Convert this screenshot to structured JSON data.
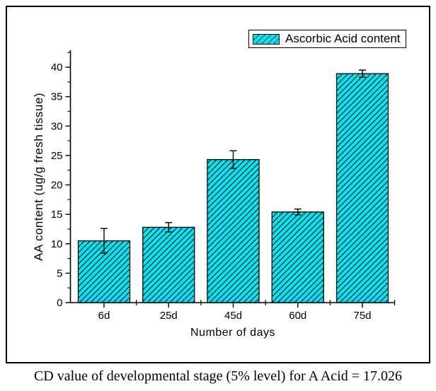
{
  "chart_data": {
    "type": "bar",
    "categories": [
      "6d",
      "25d",
      "45d",
      "60d",
      "75d"
    ],
    "series": [
      {
        "name": "Ascorbic Acid content",
        "values": [
          10.5,
          12.8,
          24.3,
          15.4,
          38.9
        ],
        "errors": [
          2.1,
          0.8,
          1.5,
          0.5,
          0.6
        ]
      }
    ],
    "xlabel": "Number of days",
    "ylabel": "AA content (ug/g fresh tissue)",
    "ylim": [
      0,
      42.5
    ],
    "y_major_step": 5,
    "y_minor_step": 2.5,
    "y_tick_labels": [
      "0",
      "5",
      "10",
      "15",
      "20",
      "25",
      "30",
      "35",
      "40"
    ],
    "grid": false,
    "legend": {
      "label": "Ascorbic Acid content",
      "position": "top-right",
      "swatch": "cyan-diagonal-hatch"
    },
    "bar_hatch": "diagonal-forward-slash"
  },
  "caption": {
    "text": "CD value of developmental stage (5% level) for A Acid = 17.026"
  },
  "colors": {
    "bar_fill": "#06e3f0",
    "hatch_line": "#000000",
    "axis": "#000000",
    "frame_border": "#000000",
    "background": "#ffffff",
    "text": "#000000"
  }
}
